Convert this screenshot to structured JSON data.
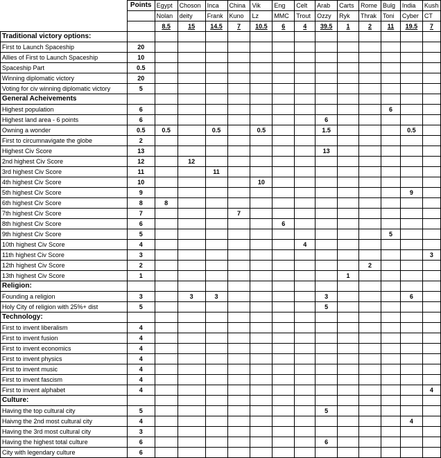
{
  "header": {
    "points_label": "Points",
    "civs": [
      "Egypt",
      "Choson",
      "Inca",
      "China",
      "Vik",
      "Eng",
      "Celt",
      "Arab",
      "Carts",
      "Rome",
      "Bulg",
      "India",
      "Kush"
    ],
    "players": [
      "Nolan",
      "deity",
      "Frank",
      "Kuno",
      "Lz",
      "MMC",
      "Trout",
      "Ozzy",
      "Ryk",
      "Thrak",
      "Toni",
      "Cyber",
      "CT"
    ],
    "totals": [
      "8.5",
      "15",
      "14.5",
      "7",
      "10.5",
      "6",
      "4",
      "39.5",
      "1",
      "2",
      "11",
      "19.5",
      "7"
    ]
  },
  "rows": [
    {
      "label": "Traditional victory options:",
      "section": true,
      "points": "",
      "values": [
        "",
        "",
        "",
        "",
        "",
        "",
        "",
        "",
        "",
        "",
        "",
        "",
        ""
      ]
    },
    {
      "label": "First to Launch Spaceship",
      "points": "20",
      "values": [
        "",
        "",
        "",
        "",
        "",
        "",
        "",
        "",
        "",
        "",
        "",
        "",
        ""
      ]
    },
    {
      "label": "Allies of First to Launch Spaceship",
      "points": "10",
      "values": [
        "",
        "",
        "",
        "",
        "",
        "",
        "",
        "",
        "",
        "",
        "",
        "",
        ""
      ]
    },
    {
      "label": "Spaceship Part",
      "points": "0.5",
      "values": [
        "",
        "",
        "",
        "",
        "",
        "",
        "",
        "",
        "",
        "",
        "",
        "",
        ""
      ]
    },
    {
      "label": "Winning diplomatic victory",
      "points": "20",
      "values": [
        "",
        "",
        "",
        "",
        "",
        "",
        "",
        "",
        "",
        "",
        "",
        "",
        ""
      ]
    },
    {
      "label": "Voting for civ winning diplomatic victory",
      "points": "5",
      "values": [
        "",
        "",
        "",
        "",
        "",
        "",
        "",
        "",
        "",
        "",
        "",
        "",
        ""
      ]
    },
    {
      "label": "General Acheivements",
      "section": true,
      "points": "",
      "values": [
        "",
        "",
        "",
        "",
        "",
        "",
        "",
        "",
        "",
        "",
        "",
        "",
        ""
      ]
    },
    {
      "label": "Highest population",
      "points": "6",
      "values": [
        "",
        "",
        "",
        "",
        "",
        "",
        "",
        "",
        "",
        "",
        "6",
        "",
        ""
      ]
    },
    {
      "label": "Highest land area - 6 points",
      "points": "6",
      "values": [
        "",
        "",
        "",
        "",
        "",
        "",
        "",
        "6",
        "",
        "",
        "",
        "",
        ""
      ]
    },
    {
      "label": "Owning a wonder",
      "points": "0.5",
      "values": [
        "0.5",
        "",
        "0.5",
        "",
        "0.5",
        "",
        "",
        "1.5",
        "",
        "",
        "",
        "0.5",
        ""
      ]
    },
    {
      "label": "First to circumnavigate the globe",
      "points": "2",
      "values": [
        "",
        "",
        "",
        "",
        "",
        "",
        "",
        "",
        "",
        "",
        "",
        "",
        ""
      ]
    },
    {
      "label": "Highest Civ Score",
      "points": "13",
      "values": [
        "",
        "",
        "",
        "",
        "",
        "",
        "",
        "13",
        "",
        "",
        "",
        "",
        ""
      ]
    },
    {
      "label": "2nd highest Civ Score",
      "points": "12",
      "values": [
        "",
        "12",
        "",
        "",
        "",
        "",
        "",
        "",
        "",
        "",
        "",
        "",
        ""
      ]
    },
    {
      "label": "3rd highest Civ Score",
      "points": "11",
      "values": [
        "",
        "",
        "11",
        "",
        "",
        "",
        "",
        "",
        "",
        "",
        "",
        "",
        ""
      ]
    },
    {
      "label": "4th highest Civ Score",
      "points": "10",
      "values": [
        "",
        "",
        "",
        "",
        "10",
        "",
        "",
        "",
        "",
        "",
        "",
        "",
        ""
      ]
    },
    {
      "label": "5th highest Civ Score",
      "points": "9",
      "values": [
        "",
        "",
        "",
        "",
        "",
        "",
        "",
        "",
        "",
        "",
        "",
        "9",
        ""
      ]
    },
    {
      "label": "6th highest Civ Score",
      "points": "8",
      "values": [
        "8",
        "",
        "",
        "",
        "",
        "",
        "",
        "",
        "",
        "",
        "",
        "",
        ""
      ]
    },
    {
      "label": "7th highest Civ Score",
      "points": "7",
      "values": [
        "",
        "",
        "",
        "7",
        "",
        "",
        "",
        "",
        "",
        "",
        "",
        "",
        ""
      ]
    },
    {
      "label": "8th highest Civ Score",
      "points": "6",
      "values": [
        "",
        "",
        "",
        "",
        "",
        "6",
        "",
        "",
        "",
        "",
        "",
        "",
        ""
      ]
    },
    {
      "label": "9th highest Civ Score",
      "points": "5",
      "values": [
        "",
        "",
        "",
        "",
        "",
        "",
        "",
        "",
        "",
        "",
        "5",
        "",
        ""
      ]
    },
    {
      "label": "10th highest Civ Score",
      "points": "4",
      "values": [
        "",
        "",
        "",
        "",
        "",
        "",
        "4",
        "",
        "",
        "",
        "",
        "",
        ""
      ]
    },
    {
      "label": "11th highest Civ Score",
      "points": "3",
      "values": [
        "",
        "",
        "",
        "",
        "",
        "",
        "",
        "",
        "",
        "",
        "",
        "",
        "3"
      ]
    },
    {
      "label": "12th highest Civ Score",
      "points": "2",
      "values": [
        "",
        "",
        "",
        "",
        "",
        "",
        "",
        "",
        "",
        "2",
        "",
        "",
        ""
      ]
    },
    {
      "label": "13th highest Civ Score",
      "points": "1",
      "values": [
        "",
        "",
        "",
        "",
        "",
        "",
        "",
        "",
        "1",
        "",
        "",
        "",
        ""
      ]
    },
    {
      "label": "Religion:",
      "section": true,
      "points": "",
      "values": [
        "",
        "",
        "",
        "",
        "",
        "",
        "",
        "",
        "",
        "",
        "",
        "",
        ""
      ]
    },
    {
      "label": "Founding a religion",
      "points": "3",
      "values": [
        "",
        "3",
        "3",
        "",
        "",
        "",
        "",
        "3",
        "",
        "",
        "",
        "6",
        ""
      ]
    },
    {
      "label": "Holy City of religion with 25%+ dist",
      "points": "5",
      "values": [
        "",
        "",
        "",
        "",
        "",
        "",
        "",
        "5",
        "",
        "",
        "",
        "",
        ""
      ]
    },
    {
      "label": "Technology:",
      "section": true,
      "points": "",
      "values": [
        "",
        "",
        "",
        "",
        "",
        "",
        "",
        "",
        "",
        "",
        "",
        "",
        ""
      ]
    },
    {
      "label": "First to invent liberalism",
      "points": "4",
      "values": [
        "",
        "",
        "",
        "",
        "",
        "",
        "",
        "",
        "",
        "",
        "",
        "",
        ""
      ]
    },
    {
      "label": "First to invent fusion",
      "points": "4",
      "values": [
        "",
        "",
        "",
        "",
        "",
        "",
        "",
        "",
        "",
        "",
        "",
        "",
        ""
      ]
    },
    {
      "label": "First to invent economics",
      "points": "4",
      "values": [
        "",
        "",
        "",
        "",
        "",
        "",
        "",
        "",
        "",
        "",
        "",
        "",
        ""
      ]
    },
    {
      "label": "First to invent physics",
      "points": "4",
      "values": [
        "",
        "",
        "",
        "",
        "",
        "",
        "",
        "",
        "",
        "",
        "",
        "",
        ""
      ]
    },
    {
      "label": "First to invent music",
      "points": "4",
      "values": [
        "",
        "",
        "",
        "",
        "",
        "",
        "",
        "",
        "",
        "",
        "",
        "",
        ""
      ]
    },
    {
      "label": "First to invent fascism",
      "points": "4",
      "values": [
        "",
        "",
        "",
        "",
        "",
        "",
        "",
        "",
        "",
        "",
        "",
        "",
        ""
      ]
    },
    {
      "label": "First to invent alphabet",
      "points": "4",
      "values": [
        "",
        "",
        "",
        "",
        "",
        "",
        "",
        "",
        "",
        "",
        "",
        "",
        "4"
      ]
    },
    {
      "label": "Culture:",
      "section": true,
      "points": "",
      "values": [
        "",
        "",
        "",
        "",
        "",
        "",
        "",
        "",
        "",
        "",
        "",
        "",
        ""
      ]
    },
    {
      "label": "Having the top cultural city",
      "points": "5",
      "values": [
        "",
        "",
        "",
        "",
        "",
        "",
        "",
        "5",
        "",
        "",
        "",
        "",
        ""
      ]
    },
    {
      "label": "Haivng the 2nd most cultural city",
      "points": "4",
      "values": [
        "",
        "",
        "",
        "",
        "",
        "",
        "",
        "",
        "",
        "",
        "",
        "4",
        ""
      ]
    },
    {
      "label": "Having the 3rd most cultural city",
      "points": "3",
      "values": [
        "",
        "",
        "",
        "",
        "",
        "",
        "",
        "",
        "",
        "",
        "",
        "",
        ""
      ]
    },
    {
      "label": "Having the highest total culture",
      "points": "6",
      "values": [
        "",
        "",
        "",
        "",
        "",
        "",
        "",
        "6",
        "",
        "",
        "",
        "",
        ""
      ]
    },
    {
      "label": "City with legendary culture",
      "points": "6",
      "values": [
        "",
        "",
        "",
        "",
        "",
        "",
        "",
        "",
        "",
        "",
        "",
        "",
        ""
      ]
    }
  ]
}
